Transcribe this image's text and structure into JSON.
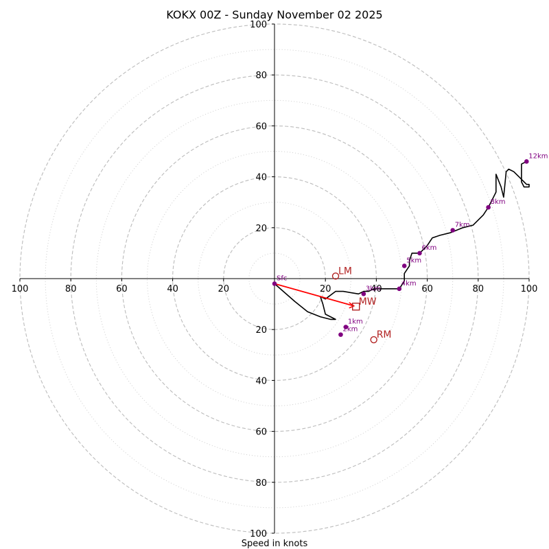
{
  "chart_data": {
    "type": "hodograph",
    "title": "KOKX 00Z - Sunday November 02 2025",
    "xlabel": "Speed in knots",
    "range": [
      -100,
      100
    ],
    "rings": [
      20,
      40,
      60,
      80,
      100
    ],
    "minor_rings": [
      10,
      30,
      50,
      70,
      90
    ],
    "x_tick_labels": [
      {
        "value": -100,
        "label": "100"
      },
      {
        "value": -80,
        "label": "80"
      },
      {
        "value": -60,
        "label": "60"
      },
      {
        "value": -40,
        "label": "40"
      },
      {
        "value": -20,
        "label": "20"
      },
      {
        "value": 20,
        "label": "20"
      },
      {
        "value": 40,
        "label": "40"
      },
      {
        "value": 60,
        "label": "60"
      },
      {
        "value": 80,
        "label": "80"
      },
      {
        "value": 100,
        "label": "100"
      }
    ],
    "y_tick_labels": [
      {
        "value": 100,
        "label": "100"
      },
      {
        "value": 80,
        "label": "80"
      },
      {
        "value": 60,
        "label": "60"
      },
      {
        "value": 40,
        "label": "40"
      },
      {
        "value": 20,
        "label": "20"
      },
      {
        "value": -20,
        "label": "20"
      },
      {
        "value": -40,
        "label": "40"
      },
      {
        "value": -60,
        "label": "60"
      },
      {
        "value": -80,
        "label": "80"
      },
      {
        "value": -100,
        "label": "100"
      }
    ],
    "trace": [
      [
        0,
        -2
      ],
      [
        8,
        -9
      ],
      [
        13,
        -13
      ],
      [
        18,
        -15
      ],
      [
        22,
        -16
      ],
      [
        23,
        -16
      ],
      [
        24,
        -16
      ],
      [
        20,
        -14
      ],
      [
        19,
        -10
      ],
      [
        18,
        -7
      ],
      [
        20,
        -8
      ],
      [
        24,
        -5
      ],
      [
        27,
        -5
      ],
      [
        33,
        -6
      ],
      [
        35,
        -5
      ],
      [
        37,
        -5
      ],
      [
        39,
        -4
      ],
      [
        41,
        -4
      ],
      [
        43,
        -4
      ],
      [
        45,
        -4
      ],
      [
        47,
        -4
      ],
      [
        48,
        -4
      ],
      [
        49,
        -4
      ],
      [
        51,
        -1
      ],
      [
        51,
        2
      ],
      [
        53,
        5
      ],
      [
        53,
        7
      ],
      [
        54,
        10
      ],
      [
        56,
        10
      ],
      [
        57,
        10
      ],
      [
        60,
        13
      ],
      [
        62,
        16
      ],
      [
        65,
        17
      ],
      [
        69,
        18
      ],
      [
        74,
        20
      ],
      [
        78,
        21
      ],
      [
        80,
        23
      ],
      [
        82,
        25
      ],
      [
        84,
        28
      ],
      [
        86,
        32
      ],
      [
        87,
        34
      ],
      [
        87,
        41
      ],
      [
        89,
        36
      ],
      [
        90,
        32
      ],
      [
        91,
        42
      ],
      [
        92,
        43
      ],
      [
        94,
        42
      ],
      [
        96,
        40
      ],
      [
        98,
        38
      ],
      [
        99,
        37
      ],
      [
        100,
        37
      ],
      [
        100,
        36
      ],
      [
        98,
        36
      ],
      [
        97,
        38
      ],
      [
        97,
        45
      ],
      [
        99,
        46
      ]
    ],
    "height_markers": [
      {
        "label": "Sfc",
        "u": 0,
        "v": -2
      },
      {
        "label": "1km",
        "u": 28,
        "v": -19
      },
      {
        "label": "2km",
        "u": 26,
        "v": -22
      },
      {
        "label": "3km",
        "u": 35,
        "v": -6
      },
      {
        "label": "4km",
        "u": 49,
        "v": -4
      },
      {
        "label": "5km",
        "u": 51,
        "v": 5
      },
      {
        "label": "6km",
        "u": 57,
        "v": 10
      },
      {
        "label": "7km",
        "u": 70,
        "v": 19
      },
      {
        "label": "8km",
        "u": 84,
        "v": 28
      },
      {
        "label": "12km",
        "u": 99,
        "v": 46
      }
    ],
    "motions": {
      "LM": {
        "label": "LM",
        "u": 24,
        "v": 1
      },
      "RM": {
        "label": "RM",
        "u": 39,
        "v": -24
      },
      "MW": {
        "label": "MW",
        "u": 32,
        "v": -11
      }
    },
    "colors": {
      "trace": "#000000",
      "markers": "#800080",
      "motions": "#b22222",
      "mean_wind_vector": "#ff0000",
      "grid": "#bbbbbb"
    }
  }
}
